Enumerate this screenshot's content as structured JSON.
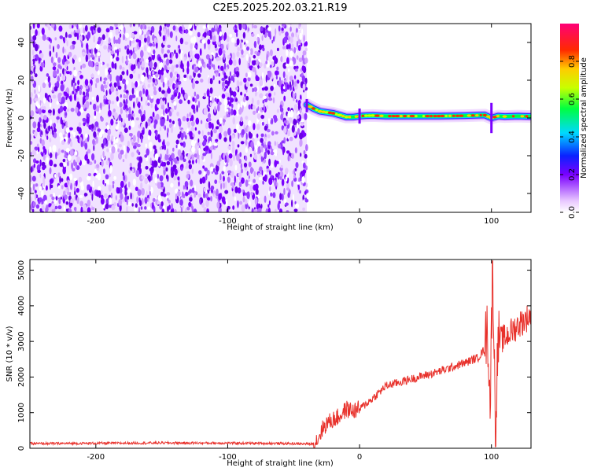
{
  "title": "C2E5.2025.202.03.21.R19",
  "chart_data": [
    {
      "type": "heatmap",
      "xlabel": "Height of straight line (km)",
      "ylabel": "Frequency (Hz)",
      "xlim": [
        -250,
        130
      ],
      "ylim": [
        -50,
        50
      ],
      "xticks": [
        -200,
        -100,
        0,
        100
      ],
      "yticks": [
        -40,
        -20,
        0,
        20,
        40
      ],
      "colorbar": {
        "label": "Normalized spectral amplitude",
        "range": [
          0,
          1
        ],
        "ticks": [
          "0.0",
          "0.2",
          "0.4",
          "0.6",
          "0.8"
        ]
      },
      "noise_region_x": [
        -250,
        -40
      ],
      "signal_track": {
        "x": [
          -40,
          -35,
          -30,
          -25,
          -20,
          -15,
          -10,
          -5,
          0,
          5,
          10,
          20,
          40,
          60,
          80,
          95,
          100,
          105,
          110,
          120,
          130
        ],
        "frequency": [
          7,
          5,
          3.5,
          3,
          2.5,
          1.5,
          0.5,
          0.5,
          1,
          1.2,
          1.3,
          1,
          1,
          1,
          1.2,
          1.5,
          0,
          1,
          0.8,
          1,
          0.8
        ]
      }
    },
    {
      "type": "line",
      "xlabel": "Height of straight line (km)",
      "ylabel": "SNR (10 * v/v)",
      "xlim": [
        -250,
        130
      ],
      "ylim": [
        0,
        5300
      ],
      "xticks": [
        -200,
        -100,
        0,
        100
      ],
      "yticks": [
        0,
        1000,
        2000,
        3000,
        4000,
        5000
      ],
      "series": [
        {
          "x": [
            -250,
            -200,
            -150,
            -100,
            -60,
            -35,
            -32,
            -28,
            -25,
            -20,
            -15,
            -10,
            -5,
            0,
            10,
            20,
            40,
            60,
            80,
            90,
            95,
            97,
            99,
            101,
            103,
            105,
            110,
            120,
            130
          ],
          "y": [
            130,
            140,
            150,
            145,
            135,
            120,
            250,
            550,
            700,
            800,
            900,
            1100,
            1050,
            1100,
            1400,
            1750,
            1950,
            2150,
            2400,
            2550,
            2800,
            3500,
            1200,
            5300,
            500,
            3000,
            3100,
            3450,
            3750
          ],
          "color": "#e8312b"
        }
      ]
    }
  ]
}
